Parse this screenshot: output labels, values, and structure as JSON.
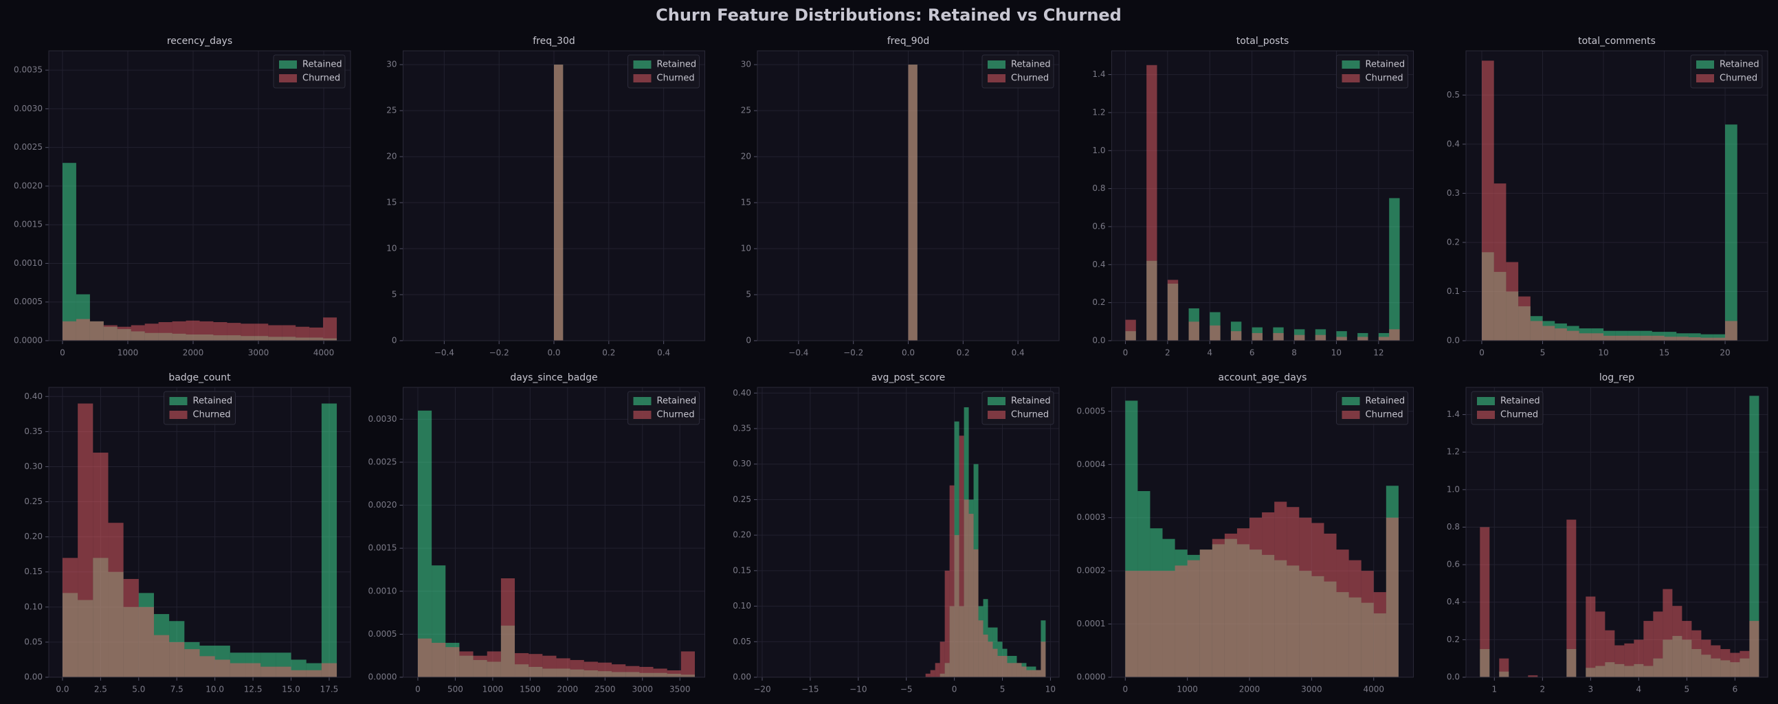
{
  "title": "Churn Feature Distributions: Retained vs Churned",
  "chart_data": [
    {
      "type": "histogram",
      "title": "recency_days",
      "alpha": 0.5,
      "grid": true,
      "legend": "upper right",
      "bins": [
        0,
        210,
        420,
        630,
        840,
        1050,
        1260,
        1470,
        1680,
        1890,
        2100,
        2310,
        2520,
        2730,
        2940,
        3150,
        3360,
        3570,
        3780,
        3990,
        4200
      ],
      "series": [
        {
          "name": "Retained",
          "color": "#42e398",
          "values": [
            0.0023,
            0.0006,
            0.00025,
            0.00018,
            0.00015,
            0.00012,
            0.0001,
            0.0001,
            9e-05,
            8e-05,
            8e-05,
            7e-05,
            7e-05,
            6e-05,
            6e-05,
            5e-05,
            5e-05,
            4e-05,
            4e-05,
            3e-05
          ]
        },
        {
          "name": "Churned",
          "color": "#e85d66",
          "values": [
            0.00025,
            0.00028,
            0.00025,
            0.0002,
            0.00018,
            0.0002,
            0.00022,
            0.00024,
            0.00025,
            0.00026,
            0.00025,
            0.00024,
            0.00023,
            0.00022,
            0.00022,
            0.0002,
            0.0002,
            0.00018,
            0.00017,
            0.0003
          ]
        }
      ],
      "xlim": [
        -210,
        4410
      ],
      "xticks": [
        0,
        1000,
        2000,
        3000,
        4000
      ],
      "ylim": [
        0,
        0.00375
      ],
      "yticks": [
        {
          "value": 0,
          "label": "0.0000"
        },
        0.0005,
        {
          "value": 0.001,
          "label": "0.0010"
        },
        0.0015,
        {
          "value": 0.002,
          "label": "0.0020"
        },
        0.0025,
        {
          "value": 0.003,
          "label": "0.0030"
        },
        0.0035
      ]
    },
    {
      "type": "histogram",
      "title": "freq_30d",
      "alpha": 0.5,
      "grid": true,
      "legend": "upper right",
      "bins": [
        -0.5,
        0,
        0.0333,
        0.5
      ],
      "series": [
        {
          "name": "Retained",
          "color": "#42e398",
          "values": [
            0,
            30,
            0
          ]
        },
        {
          "name": "Churned",
          "color": "#e85d66",
          "values": [
            0,
            30,
            0
          ]
        }
      ],
      "xlim": [
        -0.55,
        0.55
      ],
      "xticks": [
        {
          "value": -0.4,
          "label": "−0.4"
        },
        {
          "value": -0.2,
          "label": "−0.2"
        },
        {
          "value": 0,
          "label": "0.0"
        },
        0.2,
        0.4
      ],
      "ylim": [
        0,
        31.5
      ],
      "yticks": [
        0,
        5,
        10,
        15,
        20,
        25,
        30
      ]
    },
    {
      "type": "histogram",
      "title": "freq_90d",
      "alpha": 0.5,
      "grid": true,
      "legend": "upper right",
      "bins": [
        -0.5,
        0,
        0.0333,
        0.5
      ],
      "series": [
        {
          "name": "Retained",
          "color": "#42e398",
          "values": [
            0,
            30,
            0
          ]
        },
        {
          "name": "Churned",
          "color": "#e85d66",
          "values": [
            0,
            30,
            0
          ]
        }
      ],
      "xlim": [
        -0.55,
        0.55
      ],
      "xticks": [
        {
          "value": -0.4,
          "label": "−0.4"
        },
        {
          "value": -0.2,
          "label": "−0.2"
        },
        {
          "value": 0,
          "label": "0.0"
        },
        0.2,
        0.4
      ],
      "ylim": [
        0,
        31.5
      ],
      "yticks": [
        0,
        5,
        10,
        15,
        20,
        25,
        30
      ]
    },
    {
      "type": "histogram",
      "title": "total_posts",
      "alpha": 0.5,
      "grid": true,
      "legend": "upper right",
      "bins": [
        0,
        0.5,
        1,
        1.5,
        2,
        2.5,
        3,
        3.5,
        4,
        4.5,
        5,
        5.5,
        6,
        6.5,
        7,
        7.5,
        8,
        8.5,
        9,
        9.5,
        10,
        10.5,
        11,
        11.5,
        12,
        12.5,
        13
      ],
      "series": [
        {
          "name": "Retained",
          "color": "#42e398",
          "values": [
            0.05,
            0,
            0.42,
            0,
            0.3,
            0,
            0.17,
            0,
            0.15,
            0,
            0.1,
            0,
            0.07,
            0,
            0.07,
            0,
            0.06,
            0,
            0.06,
            0,
            0.05,
            0,
            0.04,
            0,
            0.04,
            0.75
          ]
        },
        {
          "name": "Churned",
          "color": "#e85d66",
          "values": [
            0.11,
            0,
            1.45,
            0,
            0.32,
            0,
            0.1,
            0,
            0.08,
            0,
            0.05,
            0,
            0.04,
            0,
            0.04,
            0,
            0.03,
            0,
            0.03,
            0,
            0.02,
            0,
            0.02,
            0,
            0.02,
            0.06
          ]
        }
      ],
      "xlim": [
        -0.65,
        13.65
      ],
      "xticks": [
        0,
        2,
        4,
        6,
        8,
        10,
        12
      ],
      "ylim": [
        0,
        1.525
      ],
      "yticks": [
        {
          "value": 0,
          "label": "0.0"
        },
        0.2,
        0.4,
        0.6,
        0.8,
        {
          "value": 1,
          "label": "1.0"
        },
        1.2,
        1.4
      ]
    },
    {
      "type": "histogram",
      "title": "total_comments",
      "alpha": 0.5,
      "grid": true,
      "legend": "upper right",
      "bins": [
        0,
        1,
        2,
        3,
        4,
        5,
        6,
        7,
        8,
        9,
        10,
        11,
        12,
        13,
        14,
        15,
        16,
        17,
        18,
        19,
        20,
        21
      ],
      "series": [
        {
          "name": "Retained",
          "color": "#42e398",
          "values": [
            0.18,
            0.14,
            0.1,
            0.07,
            0.05,
            0.04,
            0.035,
            0.03,
            0.025,
            0.025,
            0.02,
            0.02,
            0.02,
            0.02,
            0.018,
            0.018,
            0.015,
            0.015,
            0.013,
            0.013,
            0.44
          ]
        },
        {
          "name": "Churned",
          "color": "#e85d66",
          "values": [
            0.57,
            0.32,
            0.16,
            0.09,
            0.04,
            0.03,
            0.025,
            0.02,
            0.015,
            0.015,
            0.01,
            0.01,
            0.01,
            0.01,
            0.01,
            0.008,
            0.008,
            0.007,
            0.006,
            0.006,
            0.04
          ]
        }
      ],
      "xlim": [
        -1.3,
        23.5
      ],
      "xticks": [
        0,
        5,
        10,
        15,
        20
      ],
      "ylim": [
        0,
        0.59
      ],
      "yticks": [
        {
          "value": 0,
          "label": "0.0"
        },
        0.1,
        0.2,
        0.3,
        0.4,
        0.5
      ]
    },
    {
      "type": "histogram",
      "title": "badge_count",
      "alpha": 0.5,
      "grid": true,
      "legend": "upper center",
      "bins": [
        0,
        1,
        2,
        3,
        4,
        5,
        6,
        7,
        8,
        9,
        10,
        11,
        12,
        13,
        14,
        15,
        16,
        17,
        18
      ],
      "series": [
        {
          "name": "Retained",
          "color": "#42e398",
          "values": [
            0.12,
            0.11,
            0.17,
            0.15,
            0.1,
            0.12,
            0.09,
            0.08,
            0.05,
            0.045,
            0.045,
            0.035,
            0.035,
            0.035,
            0.035,
            0.025,
            0.02,
            0.39
          ]
        },
        {
          "name": "Churned",
          "color": "#e85d66",
          "values": [
            0.17,
            0.39,
            0.32,
            0.22,
            0.14,
            0.1,
            0.06,
            0.05,
            0.04,
            0.03,
            0.025,
            0.02,
            0.02,
            0.015,
            0.015,
            0.01,
            0.01,
            0.02
          ]
        }
      ],
      "xlim": [
        -0.9,
        18.9
      ],
      "xticks": [
        {
          "value": 0,
          "label": "0.0"
        },
        2.5,
        {
          "value": 5,
          "label": "5.0"
        },
        7.5,
        {
          "value": 10,
          "label": "10.0"
        },
        12.5,
        {
          "value": 15,
          "label": "15.0"
        },
        17.5
      ],
      "ylim": [
        0,
        0.413
      ],
      "yticks": [
        {
          "value": 0,
          "label": "0.00"
        },
        0.05,
        {
          "value": 0.1,
          "label": "0.10"
        },
        0.15,
        {
          "value": 0.2,
          "label": "0.20"
        },
        0.25,
        {
          "value": 0.3,
          "label": "0.30"
        },
        0.35,
        {
          "value": 0.4,
          "label": "0.40"
        }
      ]
    },
    {
      "type": "histogram",
      "title": "days_since_badge",
      "alpha": 0.5,
      "grid": true,
      "legend": "upper right",
      "bins": [
        0,
        185,
        370,
        555,
        740,
        925,
        1110,
        1295,
        1480,
        1665,
        1850,
        2035,
        2220,
        2405,
        2590,
        2775,
        2960,
        3145,
        3330,
        3515,
        3700
      ],
      "series": [
        {
          "name": "Retained",
          "color": "#42e398",
          "values": [
            0.0031,
            0.0013,
            0.0004,
            0.00025,
            0.0002,
            0.00018,
            0.0006,
            0.00015,
            0.00012,
            0.0001,
            0.0001,
            9e-05,
            8e-05,
            7e-05,
            6e-05,
            6e-05,
            5e-05,
            5e-05,
            4e-05,
            3e-05
          ]
        },
        {
          "name": "Churned",
          "color": "#e85d66",
          "values": [
            0.00045,
            0.0004,
            0.00035,
            0.0003,
            0.00025,
            0.0003,
            0.00115,
            0.00028,
            0.00027,
            0.00025,
            0.00022,
            0.0002,
            0.00018,
            0.00017,
            0.00015,
            0.00013,
            0.00012,
            0.0001,
            8e-05,
            0.0003
          ]
        }
      ],
      "xlim": [
        -197,
        3833
      ],
      "xticks": [
        0,
        500,
        1000,
        1500,
        2000,
        2500,
        3000,
        3500
      ],
      "ylim": [
        0,
        0.00337
      ],
      "yticks": [
        {
          "value": 0,
          "label": "0.0000"
        },
        0.0005,
        {
          "value": 0.001,
          "label": "0.0010"
        },
        0.0015,
        {
          "value": 0.002,
          "label": "0.0020"
        },
        0.0025,
        {
          "value": 0.003,
          "label": "0.0030"
        }
      ]
    },
    {
      "type": "histogram",
      "title": "avg_post_score",
      "alpha": 0.5,
      "grid": true,
      "legend": "upper right",
      "bins": [
        -3,
        -2.5,
        -2,
        -1.5,
        -1,
        -0.5,
        0,
        0.5,
        1,
        1.5,
        2,
        2.5,
        3,
        3.5,
        4,
        4.5,
        5,
        5.5,
        6,
        6.5,
        7,
        7.5,
        8,
        8.5,
        9,
        9.5
      ],
      "series": [
        {
          "name": "Retained",
          "color": "#42e398",
          "values": [
            0,
            0,
            0,
            0.005,
            0.02,
            0.1,
            0.36,
            0.1,
            0.38,
            0.25,
            0.3,
            0.1,
            0.11,
            0.07,
            0.07,
            0.05,
            0.04,
            0.03,
            0.03,
            0.02,
            0.02,
            0.015,
            0.015,
            0.01,
            0.08
          ]
        },
        {
          "name": "Churned",
          "color": "#e85d66",
          "values": [
            0.005,
            0.01,
            0.02,
            0.05,
            0.15,
            0.27,
            0.2,
            0.34,
            0.25,
            0.23,
            0.18,
            0.08,
            0.06,
            0.05,
            0.04,
            0.03,
            0.03,
            0.02,
            0.02,
            0.02,
            0.015,
            0.01,
            0.01,
            0.01,
            0.05
          ]
        }
      ],
      "xlim": [
        -20.5,
        10.9
      ],
      "xticks": [
        {
          "value": -20,
          "label": "−20"
        },
        {
          "value": -15,
          "label": "−15"
        },
        {
          "value": -10,
          "label": "−10"
        },
        {
          "value": -5,
          "label": "−5"
        },
        0,
        5,
        10
      ],
      "ylim": [
        0,
        0.408
      ],
      "yticks": [
        {
          "value": 0,
          "label": "0.00"
        },
        0.05,
        {
          "value": 0.1,
          "label": "0.10"
        },
        0.15,
        {
          "value": 0.2,
          "label": "0.20"
        },
        0.25,
        {
          "value": 0.3,
          "label": "0.30"
        },
        0.35,
        {
          "value": 0.4,
          "label": "0.40"
        }
      ]
    },
    {
      "type": "histogram",
      "title": "account_age_days",
      "alpha": 0.5,
      "grid": true,
      "legend": "upper right",
      "bins": [
        0,
        200,
        400,
        600,
        800,
        1000,
        1200,
        1400,
        1600,
        1800,
        2000,
        2200,
        2400,
        2600,
        2800,
        3000,
        3200,
        3400,
        3600,
        3800,
        4000,
        4200,
        4400
      ],
      "series": [
        {
          "name": "Retained",
          "color": "#42e398",
          "values": [
            0.00052,
            0.00035,
            0.00028,
            0.00026,
            0.00024,
            0.00023,
            0.00024,
            0.00025,
            0.00026,
            0.00025,
            0.00024,
            0.00023,
            0.00022,
            0.00021,
            0.0002,
            0.00019,
            0.00018,
            0.00016,
            0.00015,
            0.00014,
            0.00012,
            0.00036
          ]
        },
        {
          "name": "Churned",
          "color": "#e85d66",
          "values": [
            0.0002,
            0.0002,
            0.0002,
            0.0002,
            0.00021,
            0.00022,
            0.00024,
            0.00026,
            0.00027,
            0.00028,
            0.0003,
            0.00031,
            0.00033,
            0.00032,
            0.0003,
            0.00029,
            0.00027,
            0.00024,
            0.00022,
            0.0002,
            0.00016,
            0.0003
          ]
        }
      ],
      "xlim": [
        -219,
        4639
      ],
      "xticks": [
        0,
        1000,
        2000,
        3000,
        4000
      ],
      "ylim": [
        0,
        0.000545
      ],
      "yticks": [
        {
          "value": 0,
          "label": "0.0000"
        },
        0.0001,
        0.0002,
        0.0003,
        0.0004,
        0.0005
      ]
    },
    {
      "type": "histogram",
      "title": "log_rep",
      "alpha": 0.5,
      "grid": true,
      "legend": "upper left",
      "bins": [
        0.7,
        0.9,
        1.1,
        1.3,
        1.5,
        1.7,
        1.9,
        2.1,
        2.3,
        2.5,
        2.7,
        2.9,
        3.1,
        3.3,
        3.5,
        3.7,
        3.9,
        4.1,
        4.3,
        4.5,
        4.7,
        4.9,
        5.1,
        5.3,
        5.5,
        5.7,
        5.9,
        6.1,
        6.3,
        6.5
      ],
      "series": [
        {
          "name": "Retained",
          "color": "#42e398",
          "values": [
            0.15,
            0,
            0.03,
            0,
            0,
            0,
            0,
            0,
            0,
            0.15,
            0,
            0.05,
            0.06,
            0.08,
            0.07,
            0.06,
            0.07,
            0.06,
            0.1,
            0.2,
            0.22,
            0.2,
            0.15,
            0.12,
            0.1,
            0.09,
            0.08,
            0.1,
            1.5
          ]
        },
        {
          "name": "Churned",
          "color": "#e85d66",
          "values": [
            0.8,
            0,
            0.1,
            0,
            0,
            0.01,
            0,
            0,
            0,
            0.84,
            0,
            0.43,
            0.35,
            0.25,
            0.17,
            0.18,
            0.2,
            0.3,
            0.35,
            0.47,
            0.38,
            0.3,
            0.25,
            0.2,
            0.17,
            0.15,
            0.13,
            0.14,
            0.3
          ]
        }
      ],
      "xlim": [
        0.41,
        6.68
      ],
      "xticks": [
        1,
        2,
        3,
        4,
        5,
        6
      ],
      "ylim": [
        0,
        1.545
      ],
      "yticks": [
        {
          "value": 0,
          "label": "0.0"
        },
        0.2,
        0.4,
        0.6,
        0.8,
        {
          "value": 1,
          "label": "1.0"
        },
        1.2,
        1.4
      ]
    }
  ]
}
